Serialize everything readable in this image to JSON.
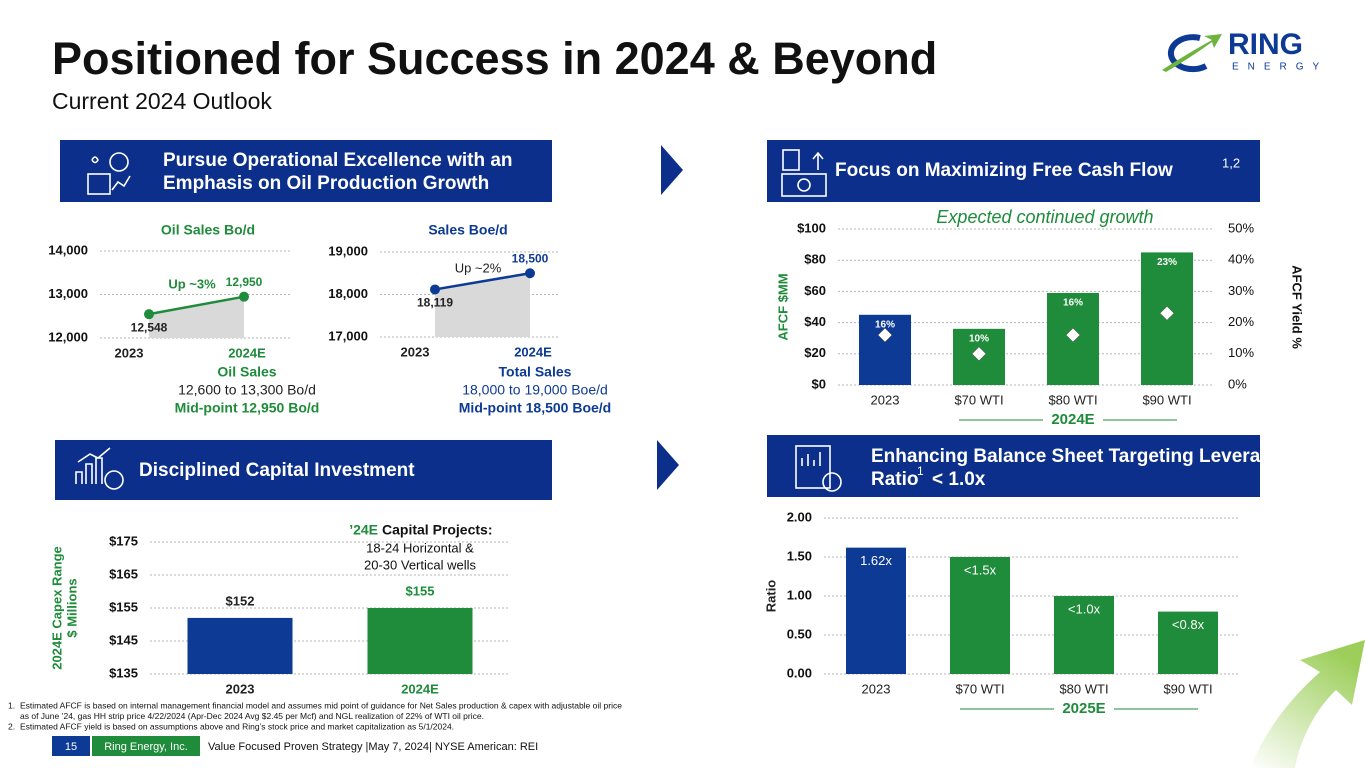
{
  "header": {
    "title": "Positioned for Success in 2024 & Beyond",
    "subtitle": "Current 2024 Outlook"
  },
  "logo": {
    "name": "RING",
    "tagline": "ENERGY"
  },
  "sections": [
    {
      "title_lines": [
        "Pursue Operational Excellence with an",
        "Emphasis on Oil Production Growth"
      ]
    },
    {
      "title": "Focus on Maximizing Free Cash Flow",
      "superscript": "1,2"
    },
    {
      "title": "Disciplined Capital Investment"
    },
    {
      "title_lines": [
        "Enhancing Balance Sheet Targeting Leverage",
        "Ratio"
      ],
      "superscript": "1",
      "suffix": "< 1.0x"
    }
  ],
  "chart_data": [
    {
      "type": "area",
      "title": "Oil Sales Bo/d",
      "categories": [
        "2023",
        "2024E"
      ],
      "values": [
        12548,
        12950
      ],
      "value_labels": [
        "12,548",
        "12,950"
      ],
      "color": "#1e8c3a",
      "ylim": [
        12000,
        14000
      ],
      "yticks": [
        {
          "value": 12000,
          "label": "12,000"
        },
        {
          "value": 13000,
          "label": "13,000"
        },
        {
          "value": 14000,
          "label": "14,000"
        }
      ],
      "grid": true,
      "annotation": "Up ~3%",
      "caption": {
        "title": "Oil Sales",
        "range": "12,600 to 13,300 Bo/d",
        "midpoint": "Mid-point 12,950 Bo/d"
      }
    },
    {
      "type": "area",
      "title": "Sales Boe/d",
      "categories": [
        "2023",
        "2024E"
      ],
      "values": [
        18119,
        18500
      ],
      "value_labels": [
        "18,119",
        "18,500"
      ],
      "color": "#0d3a94",
      "ylim": [
        17000,
        19000
      ],
      "yticks": [
        {
          "value": 17000,
          "label": "17,000"
        },
        {
          "value": 18000,
          "label": "18,000"
        },
        {
          "value": 19000,
          "label": "19,000"
        }
      ],
      "grid": true,
      "annotation": "Up ~2%",
      "caption": {
        "title": "Total Sales",
        "range": "18,000 to 19,000 Boe/d",
        "midpoint": "Mid-point 18,500 Boe/d"
      }
    },
    {
      "type": "bar",
      "categories": [
        "2023",
        "$70 WTI",
        "$80 WTI",
        "$90 WTI"
      ],
      "series": [
        {
          "colors": [
            "#0d3a94",
            "#1e8c3a",
            "#1e8c3a",
            "#1e8c3a"
          ],
          "values": [
            45,
            36,
            59,
            85
          ]
        },
        {
          "axis": "y2",
          "marker": "diamond",
          "color": "#ffffff",
          "values": [
            16,
            10,
            16,
            23
          ],
          "value_labels": [
            "16%",
            "10%",
            "16%",
            "23%"
          ]
        }
      ],
      "ylim": [
        0,
        100
      ],
      "yticks": [
        {
          "value": 0,
          "label": "$0"
        },
        {
          "value": 20,
          "label": "$20"
        },
        {
          "value": 40,
          "label": "$40"
        },
        {
          "value": 60,
          "label": "$60"
        },
        {
          "value": 80,
          "label": "$80"
        },
        {
          "value": 100,
          "label": "$100"
        }
      ],
      "y2lim": [
        0,
        50
      ],
      "y2ticks": [
        {
          "value": 0,
          "label": "0%"
        },
        {
          "value": 10,
          "label": "10%"
        },
        {
          "value": 20,
          "label": "20%"
        },
        {
          "value": 30,
          "label": "30%"
        },
        {
          "value": 40,
          "label": "40%"
        },
        {
          "value": 50,
          "label": "50%"
        }
      ],
      "grid": true,
      "ylabel": "AFCF $MM",
      "y2label": "AFCF Yield %",
      "annotation": "Expected continued growth",
      "group_label": "2024E"
    },
    {
      "type": "bar",
      "categories": [
        "2023",
        "2024E"
      ],
      "values": [
        152,
        155
      ],
      "value_labels": [
        "$152",
        "$155"
      ],
      "colors": [
        "#0d3a94",
        "#1e8c3a"
      ],
      "ylim": [
        135,
        175
      ],
      "yticks": [
        {
          "value": 135,
          "label": "$135"
        },
        {
          "value": 145,
          "label": "$145"
        },
        {
          "value": 155,
          "label": "$155"
        },
        {
          "value": 165,
          "label": "$165"
        },
        {
          "value": 175,
          "label": "$175"
        }
      ],
      "grid": true,
      "ylabel": [
        "2024E Capex Range",
        "$ Millions"
      ],
      "annotation": {
        "year": "’24E",
        "title": "Capital Projects:",
        "lines": [
          "18-24 Horizontal &",
          "20-30 Vertical wells"
        ]
      }
    },
    {
      "type": "bar",
      "categories": [
        "2023",
        "$70 WTI",
        "$80 WTI",
        "$90 WTI"
      ],
      "values": [
        1.62,
        1.5,
        1.0,
        0.8
      ],
      "value_labels": [
        "1.62x",
        "<1.5x",
        "<1.0x",
        "<0.8x"
      ],
      "colors": [
        "#0d3a94",
        "#1e8c3a",
        "#1e8c3a",
        "#1e8c3a"
      ],
      "ylim": [
        0,
        2
      ],
      "yticks": [
        {
          "value": 0,
          "label": "0.00"
        },
        {
          "value": 0.5,
          "label": "0.50"
        },
        {
          "value": 1,
          "label": "1.00"
        },
        {
          "value": 1.5,
          "label": "1.50"
        },
        {
          "value": 2,
          "label": "2.00"
        }
      ],
      "grid": true,
      "ylabel": "Ratio",
      "group_label": "2025E"
    }
  ],
  "footnotes": [
    {
      "number": "1.",
      "lines": [
        "Estimated AFCF is based on internal management financial model and assumes mid point of guidance for Net Sales production & capex with adjustable oil price",
        "as of June ’24, gas HH strip price 4/22/2024 (Apr-Dec 2024 Avg $2.45 per Mcf) and NGL realization of 22% of WTI oil price."
      ]
    },
    {
      "number": "2.",
      "lines": [
        "Estimated AFCF yield is based on assumptions above and Ring’s stock price and market capitalization as 5/1/2024."
      ]
    }
  ],
  "footer": {
    "page": "15",
    "company": "Ring Energy, Inc.",
    "tagline": "Value Focused Proven Strategy |May 7, 2024| NYSE American: REI"
  }
}
